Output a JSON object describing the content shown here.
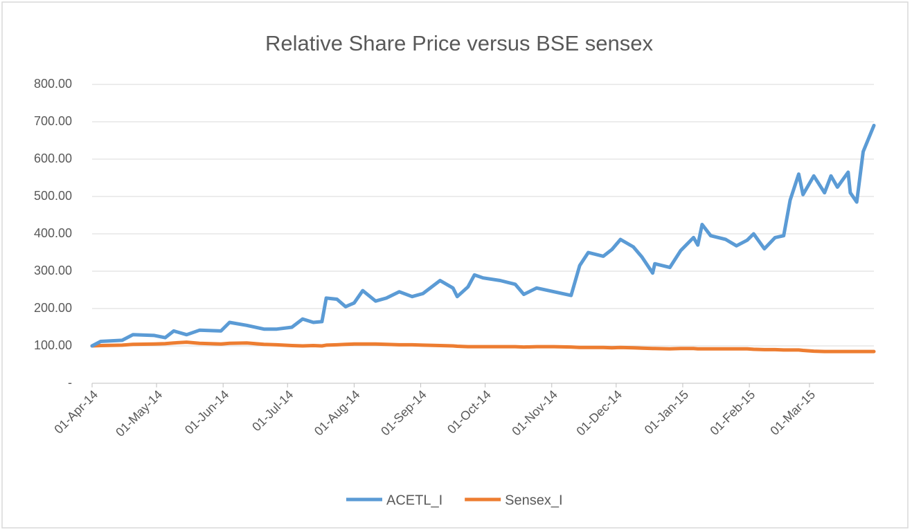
{
  "chart_data": {
    "type": "line",
    "title": "Relative Share Price versus BSE sensex",
    "x": [
      "2014-04-01",
      "2014-04-05",
      "2014-04-15",
      "2014-04-20",
      "2014-04-30",
      "2014-05-05",
      "2014-05-09",
      "2014-05-15",
      "2014-05-21",
      "2014-05-31",
      "2014-06-04",
      "2014-06-12",
      "2014-06-20",
      "2014-06-26",
      "2014-07-03",
      "2014-07-08",
      "2014-07-13",
      "2014-07-17",
      "2014-07-19",
      "2014-07-24",
      "2014-07-28",
      "2014-08-01",
      "2014-08-05",
      "2014-08-11",
      "2014-08-16",
      "2014-08-22",
      "2014-08-28",
      "2014-09-02",
      "2014-09-10",
      "2014-09-16",
      "2014-09-18",
      "2014-09-23",
      "2014-09-26",
      "2014-09-30",
      "2014-10-08",
      "2014-10-15",
      "2014-10-19",
      "2014-10-25",
      "2014-11-02",
      "2014-11-10",
      "2014-11-14",
      "2014-11-18",
      "2014-11-25",
      "2014-11-29",
      "2014-12-03",
      "2014-12-09",
      "2014-12-13",
      "2014-12-18",
      "2014-12-19",
      "2014-12-26",
      "2014-12-31",
      "2015-01-06",
      "2015-01-08",
      "2015-01-10",
      "2015-01-14",
      "2015-01-21",
      "2015-01-26",
      "2015-01-31",
      "2015-02-03",
      "2015-02-08",
      "2015-02-13",
      "2015-02-17",
      "2015-02-20",
      "2015-02-24",
      "2015-02-26",
      "2015-03-03",
      "2015-03-08",
      "2015-03-11",
      "2015-03-14",
      "2015-03-19",
      "2015-03-20",
      "2015-03-23",
      "2015-03-26",
      "2015-03-31"
    ],
    "series": [
      {
        "name": "ACETL_I",
        "color": "#5b9bd5",
        "values": [
          100,
          112,
          115,
          130,
          128,
          122,
          140,
          130,
          142,
          140,
          163,
          155,
          145,
          145,
          150,
          172,
          163,
          165,
          228,
          225,
          205,
          215,
          248,
          220,
          228,
          245,
          232,
          240,
          275,
          255,
          232,
          258,
          290,
          282,
          275,
          265,
          238,
          255,
          245,
          235,
          315,
          350,
          340,
          358,
          385,
          365,
          338,
          295,
          320,
          310,
          355,
          390,
          370,
          425,
          395,
          385,
          368,
          383,
          400,
          360,
          390,
          395,
          490,
          560,
          505,
          555,
          510,
          555,
          525,
          565,
          510,
          485,
          620,
          690
        ]
      },
      {
        "name": "Sensex_I",
        "color": "#ed7d31",
        "values": [
          100,
          101,
          102,
          104,
          105,
          106,
          108,
          110,
          107,
          105,
          107,
          108,
          104,
          103,
          101,
          100,
          101,
          100,
          102,
          103,
          104,
          105,
          105,
          105,
          104,
          103,
          103,
          102,
          101,
          100,
          99,
          98,
          98,
          98,
          98,
          98,
          97,
          98,
          98,
          97,
          96,
          96,
          96,
          95,
          96,
          95,
          94,
          93,
          93,
          92,
          93,
          93,
          92,
          92,
          92,
          92,
          92,
          92,
          91,
          90,
          90,
          89,
          89,
          89,
          88,
          86,
          85,
          85,
          85,
          85,
          85,
          85,
          85,
          85
        ]
      }
    ],
    "xlim": [
      "2014-04-01",
      "2015-03-31"
    ],
    "xticks": [
      {
        "value": "2014-04-01",
        "label": "01-Apr-14"
      },
      {
        "value": "2014-05-01",
        "label": "01-May-14"
      },
      {
        "value": "2014-06-01",
        "label": "01-Jun-14"
      },
      {
        "value": "2014-07-01",
        "label": "01-Jul-14"
      },
      {
        "value": "2014-08-01",
        "label": "01-Aug-14"
      },
      {
        "value": "2014-09-01",
        "label": "01-Sep-14"
      },
      {
        "value": "2014-10-01",
        "label": "01-Oct-14"
      },
      {
        "value": "2014-11-01",
        "label": "01-Nov-14"
      },
      {
        "value": "2014-12-01",
        "label": "01-Dec-14"
      },
      {
        "value": "2015-01-01",
        "label": "01-Jan-15"
      },
      {
        "value": "2015-02-01",
        "label": "01-Feb-15"
      },
      {
        "value": "2015-03-01",
        "label": "01-Mar-15"
      }
    ],
    "ylim": [
      0,
      800
    ],
    "yticks": [
      {
        "value": 0,
        "label": "-"
      },
      {
        "value": 100,
        "label": "100.00"
      },
      {
        "value": 200,
        "label": "200.00"
      },
      {
        "value": 300,
        "label": "300.00"
      },
      {
        "value": 400,
        "label": "400.00"
      },
      {
        "value": 500,
        "label": "500.00"
      },
      {
        "value": 600,
        "label": "600.00"
      },
      {
        "value": 700,
        "label": "700.00"
      },
      {
        "value": 800,
        "label": "800.00"
      }
    ],
    "grid": true,
    "legend": "bottom"
  }
}
